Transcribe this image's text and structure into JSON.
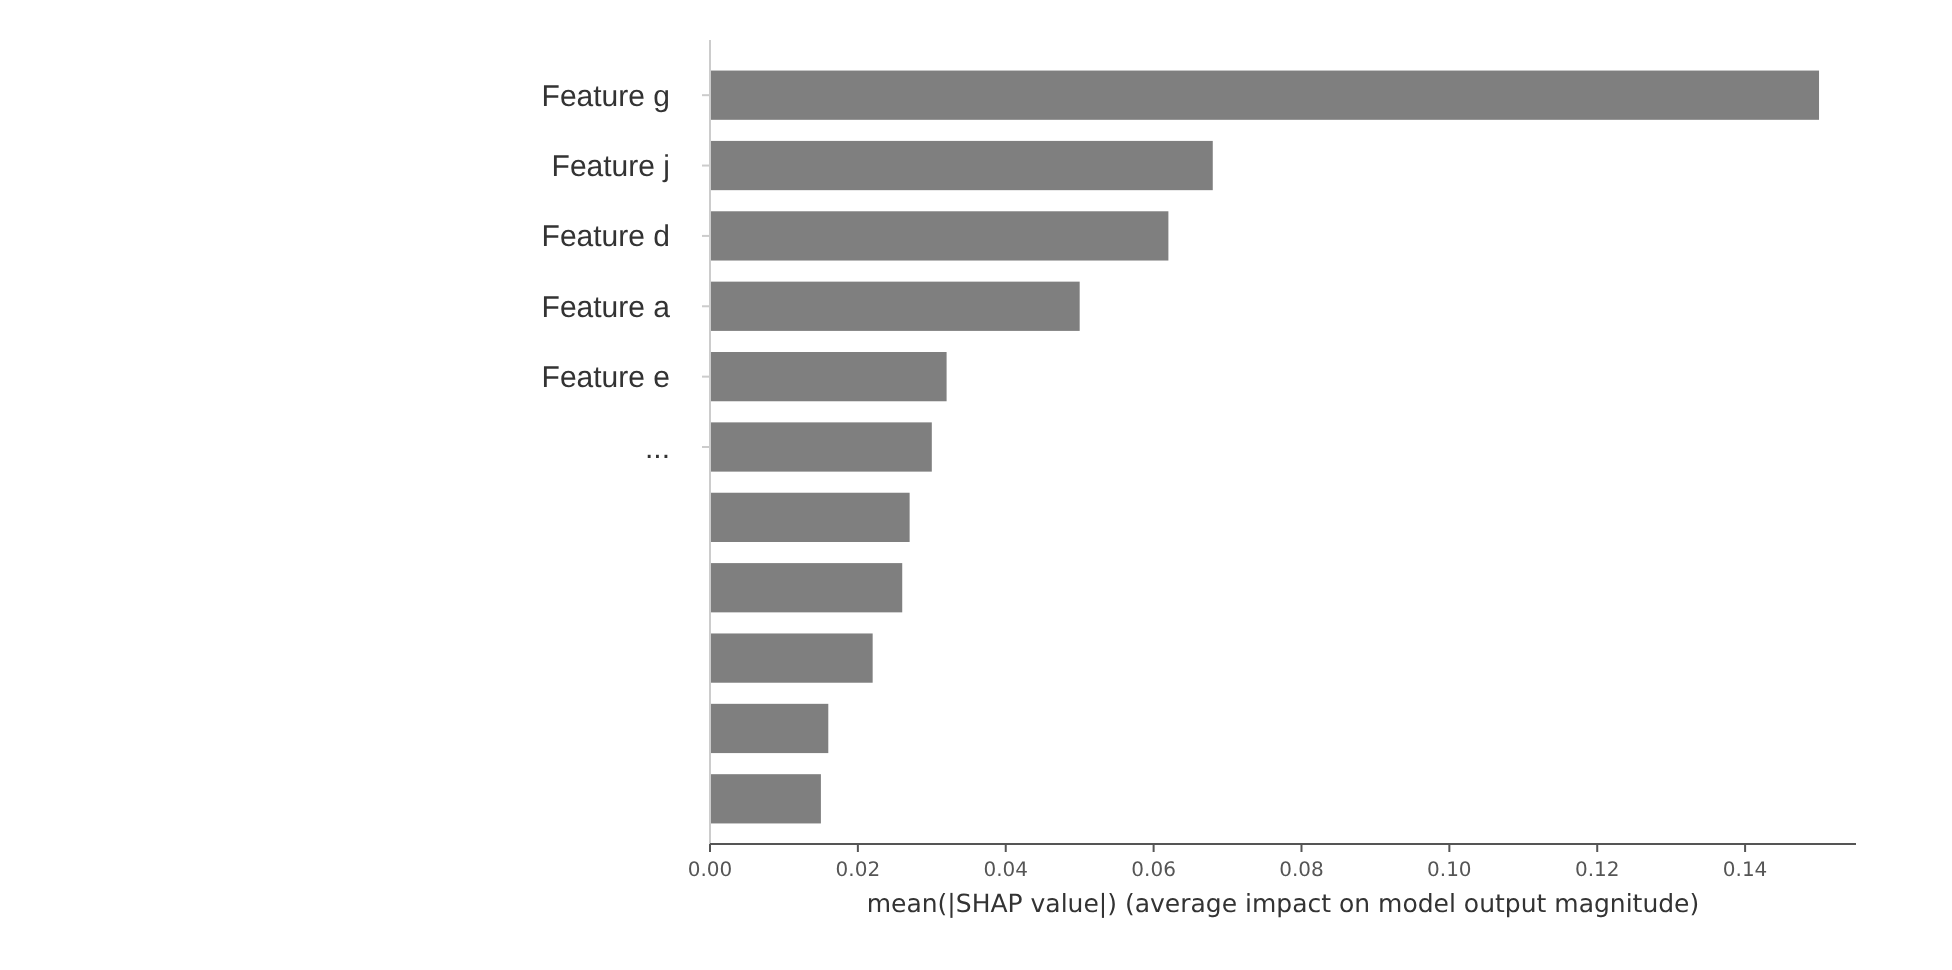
{
  "chart_data": {
    "type": "bar",
    "orientation": "horizontal",
    "categories": [
      "Feature g",
      "Feature j",
      "Feature d",
      "Feature a",
      "Feature e",
      "...",
      null,
      null,
      null,
      null,
      null
    ],
    "values": [
      0.15,
      0.068,
      0.062,
      0.05,
      0.032,
      0.03,
      0.027,
      0.026,
      0.022,
      0.016,
      0.015
    ],
    "color": "#7f7f7f",
    "xlabel": "mean(|SHAP value|) (average impact on model output magnitude)",
    "xlim": [
      0,
      0.155
    ],
    "xticks": [
      {
        "value": 0,
        "label": "0.00"
      },
      {
        "value": 0.02,
        "label": "0.02"
      },
      {
        "value": 0.04,
        "label": "0.04"
      },
      {
        "value": 0.06,
        "label": "0.06"
      },
      {
        "value": 0.08,
        "label": "0.08"
      },
      {
        "value": 0.1,
        "label": "0.10"
      },
      {
        "value": 0.12,
        "label": "0.12"
      },
      {
        "value": 0.14,
        "label": "0.14"
      }
    ],
    "grid": false
  }
}
